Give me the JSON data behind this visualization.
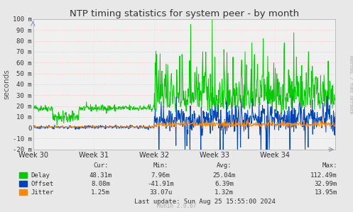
{
  "title": "NTP timing statistics for system peer - by month",
  "ylabel": "seconds",
  "xlabel_ticks": [
    "Week 30",
    "Week 31",
    "Week 32",
    "Week 33",
    "Week 34"
  ],
  "ylim": [
    -20,
    100
  ],
  "yticks": [
    -20,
    -10,
    0,
    10,
    20,
    30,
    40,
    50,
    60,
    70,
    80,
    90,
    100
  ],
  "ytick_labels": [
    "-20 m",
    "-10 m",
    "0",
    "10 m",
    "20 m",
    "30 m",
    "40 m",
    "50 m",
    "60 m",
    "70 m",
    "80 m",
    "90 m",
    "100 m"
  ],
  "bg_color": "#e8e8e8",
  "plot_bg_color": "#f0f0f0",
  "grid_color_h": "#ffaaaa",
  "grid_color_v": "#dddddd",
  "delay_color": "#00cc00",
  "offset_color": "#0044bb",
  "jitter_color": "#ff8800",
  "title_color": "#333333",
  "label_color": "#555555",
  "right_text": "RRDTOOL / TOBI OETIKER",
  "legend_items": [
    "Delay",
    "Offset",
    "Jitter"
  ],
  "stats_header": [
    "Cur:",
    "Min:",
    "Avg:",
    "Max:"
  ],
  "stats_cur": [
    "48.31m",
    "8.08m",
    "1.25m"
  ],
  "stats_min": [
    "7.96m",
    "-41.91m",
    "33.07u"
  ],
  "stats_avg": [
    "25.04m",
    "6.39m",
    "1.32m"
  ],
  "stats_max": [
    "112.49m",
    "32.99m",
    "13.95m"
  ],
  "last_update": "Last update: Sun Aug 25 15:55:00 2024",
  "munin_version": "Munin 2.0.67",
  "num_points": 800
}
